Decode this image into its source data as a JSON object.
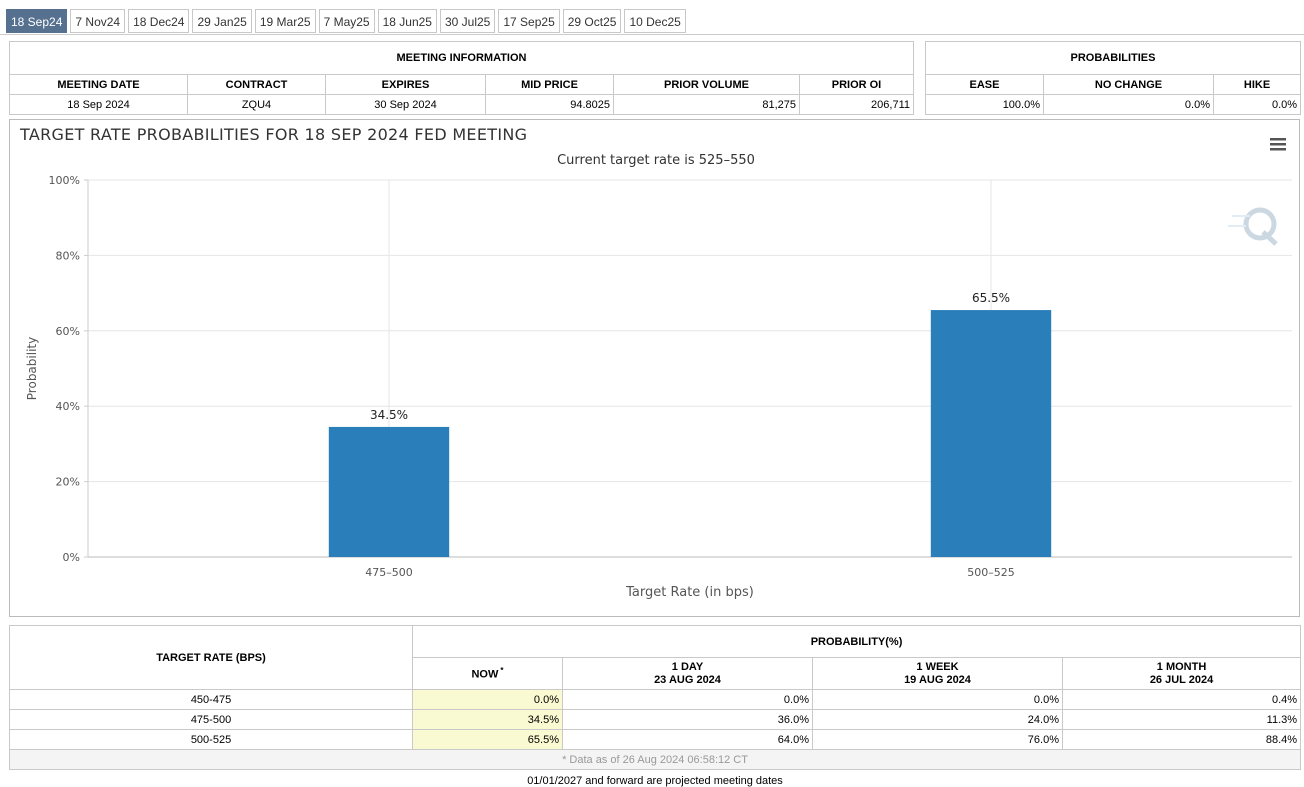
{
  "tabs": [
    "18 Sep24",
    "7 Nov24",
    "18 Dec24",
    "29 Jan25",
    "19 Mar25",
    "7 May25",
    "18 Jun25",
    "30 Jul25",
    "17 Sep25",
    "29 Oct25",
    "10 Dec25"
  ],
  "meeting_info": {
    "title": "MEETING INFORMATION",
    "headers": [
      "MEETING DATE",
      "CONTRACT",
      "EXPIRES",
      "MID PRICE",
      "PRIOR VOLUME",
      "PRIOR OI"
    ],
    "row": [
      "18 Sep 2024",
      "ZQU4",
      "30 Sep 2024",
      "94.8025",
      "81,275",
      "206,711"
    ]
  },
  "probabilities": {
    "title": "PROBABILITIES",
    "headers": [
      "EASE",
      "NO CHANGE",
      "HIKE"
    ],
    "row": [
      "100.0%",
      "0.0%",
      "0.0%"
    ]
  },
  "chart_data": {
    "type": "bar",
    "title": "TARGET RATE PROBABILITIES FOR 18 SEP 2024 FED MEETING",
    "subtitle": "Current target rate is 525–550",
    "categories": [
      "475–500",
      "500–525"
    ],
    "values": [
      34.5,
      65.5
    ],
    "value_labels": [
      "34.5%",
      "65.5%"
    ],
    "color": "#2a7fba",
    "x_label": "Target Rate (in bps)",
    "y_label": "Probability",
    "ylim": [
      0,
      100
    ],
    "yticks": [
      {
        "value": 0,
        "label": "0%"
      },
      {
        "value": 20,
        "label": "20%"
      },
      {
        "value": 40,
        "label": "40%"
      },
      {
        "value": 60,
        "label": "60%"
      },
      {
        "value": 80,
        "label": "80%"
      },
      {
        "value": 100,
        "label": "100%"
      }
    ],
    "grid": true
  },
  "prob_table": {
    "first_header": "TARGET RATE (BPS)",
    "group_header": "PROBABILITY(%)",
    "now": {
      "label": "NOW",
      "mark": "*"
    },
    "columns": [
      {
        "label": "1 DAY",
        "date": "23 AUG 2024"
      },
      {
        "label": "1 WEEK",
        "date": "19 AUG 2024"
      },
      {
        "label": "1 MONTH",
        "date": "26 JUL 2024"
      }
    ],
    "rows": [
      [
        "450-475",
        "0.0%",
        "0.0%",
        "0.0%",
        "0.4%"
      ],
      [
        "475-500",
        "34.5%",
        "36.0%",
        "24.0%",
        "11.3%"
      ],
      [
        "500-525",
        "65.5%",
        "64.0%",
        "76.0%",
        "88.4%"
      ]
    ],
    "footnote": "* Data as of 26 Aug 2024 06:58:12 CT"
  },
  "footer": "01/01/2027 and forward are projected meeting dates"
}
